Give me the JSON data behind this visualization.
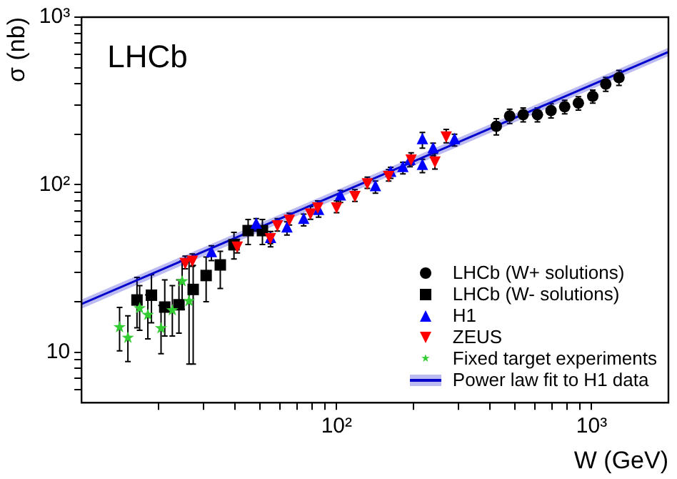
{
  "chart_data": {
    "type": "scatter",
    "annotations": [
      "LHCb"
    ],
    "xlabel": "W (GeV)",
    "ylabel": "σ (nb)",
    "log": "xy",
    "grid": false,
    "legend": "bottom right",
    "xlim": [
      10,
      2000
    ],
    "ylim": [
      5,
      1000
    ],
    "xticks": [
      {
        "value": 20,
        "label": null
      },
      {
        "value": 30,
        "label": null
      },
      {
        "value": 40,
        "label": null
      },
      {
        "value": 50,
        "label": null
      },
      {
        "value": 60,
        "label": null
      },
      {
        "value": 70,
        "label": null
      },
      {
        "value": 80,
        "label": null
      },
      {
        "value": 90,
        "label": null
      },
      {
        "value": 100,
        "label": "10²"
      },
      {
        "value": 200,
        "label": null
      },
      {
        "value": 300,
        "label": null
      },
      {
        "value": 400,
        "label": null
      },
      {
        "value": 500,
        "label": null
      },
      {
        "value": 600,
        "label": null
      },
      {
        "value": 700,
        "label": null
      },
      {
        "value": 800,
        "label": null
      },
      {
        "value": 900,
        "label": null
      },
      {
        "value": 1000,
        "label": "10³"
      }
    ],
    "yticks": [
      {
        "value": 6,
        "label": null
      },
      {
        "value": 7,
        "label": null
      },
      {
        "value": 8,
        "label": null
      },
      {
        "value": 9,
        "label": null
      },
      10,
      {
        "value": 20,
        "label": null
      },
      {
        "value": 30,
        "label": null
      },
      {
        "value": 40,
        "label": null
      },
      {
        "value": 50,
        "label": null
      },
      {
        "value": 60,
        "label": null
      },
      {
        "value": 70,
        "label": null
      },
      {
        "value": 80,
        "label": null
      },
      {
        "value": 90,
        "label": null
      },
      {
        "value": 100,
        "label": "10²"
      },
      {
        "value": 200,
        "label": null
      },
      {
        "value": 300,
        "label": null
      },
      {
        "value": 400,
        "label": null
      },
      {
        "value": 500,
        "label": null
      },
      {
        "value": 600,
        "label": null
      },
      {
        "value": 700,
        "label": null
      },
      {
        "value": 800,
        "label": null
      },
      {
        "value": 900,
        "label": null
      },
      {
        "value": 1000,
        "label": "10³"
      }
    ],
    "series": [
      {
        "name": "LHCb (W+ solutions)",
        "type": "scatter",
        "marker": "circle",
        "color": "#000000",
        "x": [
          423,
          477,
          539,
          613,
          693,
          784,
          887,
          1010,
          1136,
          1280
        ],
        "values": [
          223,
          257,
          262,
          262,
          277,
          292,
          307,
          337,
          399,
          436
        ],
        "errors": [
          25,
          25,
          25,
          25,
          27,
          27,
          28,
          30,
          38,
          45
        ]
      },
      {
        "name": "LHCb (W- solutions)",
        "type": "scatter",
        "marker": "square",
        "color": "#000000",
        "x": [
          16.5,
          18.8,
          21.2,
          24.1,
          27.4,
          30.8,
          35.0,
          39.6,
          45.0,
          51.2
        ],
        "values": [
          20.5,
          21.9,
          18.6,
          19.2,
          23.7,
          28.7,
          33.2,
          43.8,
          53.2,
          53.2
        ],
        "errors": [
          [
            14,
            28
          ],
          [
            15,
            29
          ],
          [
            12.5,
            27
          ],
          [
            13,
            27
          ],
          [
            8.5,
            33
          ],
          [
            20,
            37
          ],
          [
            24,
            40
          ],
          [
            36,
            52
          ],
          [
            44,
            62
          ],
          [
            44,
            62
          ]
        ]
      },
      {
        "name": "H1",
        "type": "scatter",
        "marker": "triangle",
        "color": "#0000ff",
        "x": [
          32.3,
          48.4,
          55.1,
          63.9,
          74.3,
          85,
          103.5,
          142,
          163,
          182,
          194,
          217,
          217,
          239,
          290
        ],
        "values": [
          39.2,
          57.8,
          47.6,
          55.0,
          61.8,
          70,
          85.3,
          97,
          118,
          126,
          139,
          185,
          130,
          163,
          185
        ],
        "errors": [
          4,
          5,
          5,
          5,
          5,
          6,
          7,
          8,
          9,
          10,
          11,
          20,
          12,
          14,
          15
        ]
      },
      {
        "name": "ZEUS",
        "type": "scatter",
        "marker": "triangle_down",
        "color": "#ff0000",
        "x": [
          25.5,
          27.2,
          40.8,
          55,
          58.6,
          65.3,
          79,
          84.4,
          100,
          118,
          132,
          160,
          196,
          243,
          269
        ],
        "values": [
          34.5,
          35.6,
          43.2,
          48.5,
          57.8,
          62.5,
          68.1,
          74,
          74,
          86.5,
          103,
          114,
          143,
          139,
          196
        ],
        "errors": [
          3,
          3,
          4,
          4,
          5,
          5,
          6,
          6,
          6,
          7,
          8,
          9,
          12,
          15,
          18
        ]
      },
      {
        "name": "Fixed target experiments",
        "type": "scatter",
        "marker": "star",
        "color": "#33cc33",
        "x": [
          14.1,
          15.2,
          16.9,
          18.2,
          20.5,
          22.7,
          24.8,
          26.4
        ],
        "values": [
          14.1,
          12.2,
          18.3,
          16.7,
          13.9,
          17.8,
          26.5,
          20.2
        ],
        "errors": [
          [
            10.2,
            18.5
          ],
          [
            8.8,
            16.5
          ],
          [
            13.5,
            25
          ],
          [
            12,
            22
          ],
          [
            9.8,
            19
          ],
          [
            12.5,
            25
          ],
          [
            18,
            35
          ],
          [
            8.5,
            36
          ]
        ]
      },
      {
        "name": "Power law fit to H1 data",
        "type": "line",
        "marker": "none",
        "color": "#0000cc",
        "x": [
          10,
          2000
        ],
        "values": [
          19.4,
          620
        ],
        "lower": [
          18.2,
          585
        ],
        "upper": [
          20.6,
          657
        ]
      }
    ]
  }
}
